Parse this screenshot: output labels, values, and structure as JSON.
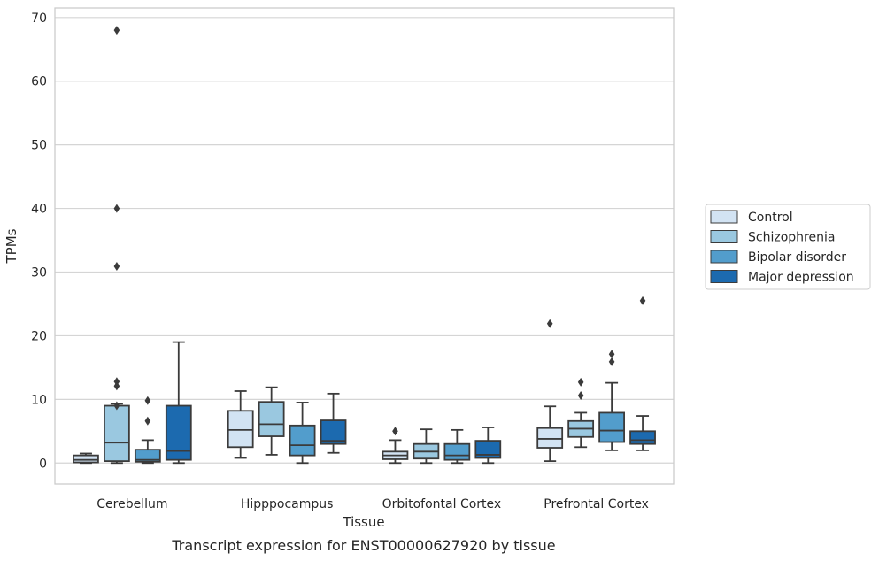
{
  "chart_data": {
    "type": "box",
    "title": "Transcript expression for ENST00000627920 by tissue",
    "xlabel": "Tissue",
    "ylabel": "TPMs",
    "ylim": [
      -3.3,
      71.5
    ],
    "yticks": [
      0,
      10,
      20,
      30,
      40,
      50,
      60,
      70
    ],
    "grid": "horizontal",
    "legend_position": "right",
    "categories": [
      "Cerebellum",
      "Hipppocampus",
      "Orbitofontal Cortex",
      "Prefrontal Cortex"
    ],
    "series": [
      {
        "name": "Control",
        "color": "#d2e3f3",
        "boxes": [
          {
            "whisker_low": 0.0,
            "q1": 0.1,
            "median": 0.5,
            "q3": 1.2,
            "whisker_high": 1.5,
            "outliers": []
          },
          {
            "whisker_low": 0.8,
            "q1": 2.5,
            "median": 5.2,
            "q3": 8.2,
            "whisker_high": 11.3,
            "outliers": []
          },
          {
            "whisker_low": 0.0,
            "q1": 0.6,
            "median": 1.2,
            "q3": 1.8,
            "whisker_high": 3.6,
            "outliers": [
              5.0
            ]
          },
          {
            "whisker_low": 0.3,
            "q1": 2.4,
            "median": 3.8,
            "q3": 5.5,
            "whisker_high": 8.9,
            "outliers": [
              21.9
            ]
          }
        ]
      },
      {
        "name": "Schizophrenia",
        "color": "#9ac8e0",
        "boxes": [
          {
            "whisker_low": 0.0,
            "q1": 0.3,
            "median": 3.2,
            "q3": 9.0,
            "whisker_high": 9.3,
            "outliers": [
              12.8,
              12.1,
              9.0
            ]
          },
          {
            "whisker_low": 1.3,
            "q1": 4.2,
            "median": 6.1,
            "q3": 9.6,
            "whisker_high": 11.9,
            "outliers": []
          },
          {
            "whisker_low": 0.0,
            "q1": 0.7,
            "median": 1.8,
            "q3": 3.0,
            "whisker_high": 5.3,
            "outliers": []
          },
          {
            "whisker_low": 2.5,
            "q1": 4.1,
            "median": 5.4,
            "q3": 6.6,
            "whisker_high": 7.9,
            "outliers": [
              12.7,
              10.6
            ]
          }
        ]
      },
      {
        "name": "Bipolar disorder",
        "color": "#529dcc",
        "boxes": [
          {
            "whisker_low": 0.0,
            "q1": 0.2,
            "median": 0.5,
            "q3": 2.1,
            "whisker_high": 3.6,
            "outliers": [
              9.8,
              6.6
            ]
          },
          {
            "whisker_low": 0.0,
            "q1": 1.2,
            "median": 2.8,
            "q3": 5.9,
            "whisker_high": 9.5,
            "outliers": []
          },
          {
            "whisker_low": 0.0,
            "q1": 0.5,
            "median": 1.2,
            "q3": 3.0,
            "whisker_high": 5.2,
            "outliers": []
          },
          {
            "whisker_low": 2.0,
            "q1": 3.3,
            "median": 5.1,
            "q3": 7.9,
            "whisker_high": 12.6,
            "outliers": [
              17.1,
              15.9
            ]
          }
        ]
      },
      {
        "name": "Major depression",
        "color": "#1c6aaf",
        "boxes": [
          {
            "whisker_low": 0.0,
            "q1": 0.5,
            "median": 1.9,
            "q3": 9.0,
            "whisker_high": 19.0,
            "outliers": []
          },
          {
            "whisker_low": 1.6,
            "q1": 3.0,
            "median": 3.5,
            "q3": 6.7,
            "whisker_high": 10.9,
            "outliers": []
          },
          {
            "whisker_low": 0.0,
            "q1": 0.8,
            "median": 1.3,
            "q3": 3.5,
            "whisker_high": 5.6,
            "outliers": []
          },
          {
            "whisker_low": 2.0,
            "q1": 3.0,
            "median": 3.6,
            "q3": 5.0,
            "whisker_high": 7.4,
            "outliers": [
              25.5
            ]
          }
        ]
      }
    ],
    "extra_outliers": [
      {
        "category_index": 0,
        "series_index": 1,
        "values": [
          68.0,
          40.0,
          30.9
        ]
      }
    ]
  }
}
